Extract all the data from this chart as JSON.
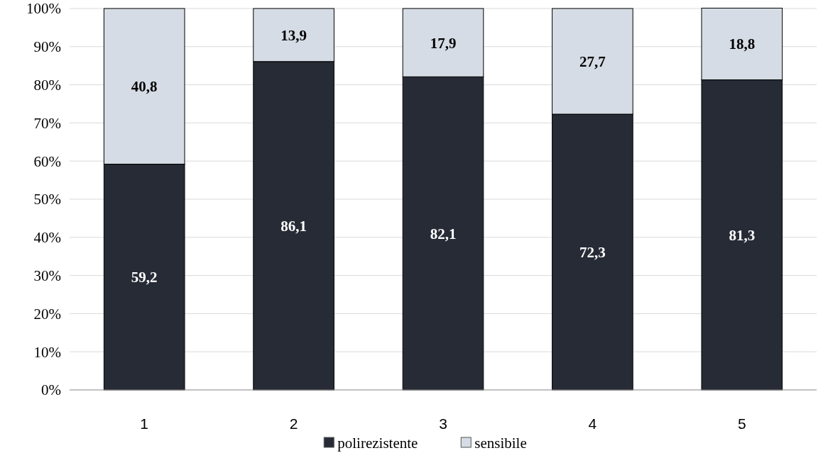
{
  "chart_data": {
    "type": "bar",
    "stacked": true,
    "categories": [
      "1",
      "2",
      "3",
      "4",
      "5"
    ],
    "series": [
      {
        "name": "polirezistente",
        "color": "#262b36",
        "values": [
          59.2,
          86.1,
          82.1,
          72.3,
          81.3
        ],
        "value_labels": [
          "59,2",
          "86,1",
          "82,1",
          "72,3",
          "81,3"
        ]
      },
      {
        "name": "sensibile",
        "color": "#d6dce5",
        "values": [
          40.8,
          13.9,
          17.9,
          27.7,
          18.8
        ],
        "value_labels": [
          "40,8",
          "13,9",
          "17,9",
          "27,7",
          "18,8"
        ]
      }
    ],
    "ylim": [
      0,
      100
    ],
    "yticks": [
      {
        "value": 0,
        "label": "0%"
      },
      {
        "value": 10,
        "label": "10%"
      },
      {
        "value": 20,
        "label": "20%"
      },
      {
        "value": 30,
        "label": "30%"
      },
      {
        "value": 40,
        "label": "40%"
      },
      {
        "value": 50,
        "label": "50%"
      },
      {
        "value": 60,
        "label": "60%"
      },
      {
        "value": 70,
        "label": "70%"
      },
      {
        "value": 80,
        "label": "80%"
      },
      {
        "value": 90,
        "label": "90%"
      },
      {
        "value": 100,
        "label": "100%"
      }
    ],
    "grid": "y",
    "legend": "bottom"
  }
}
